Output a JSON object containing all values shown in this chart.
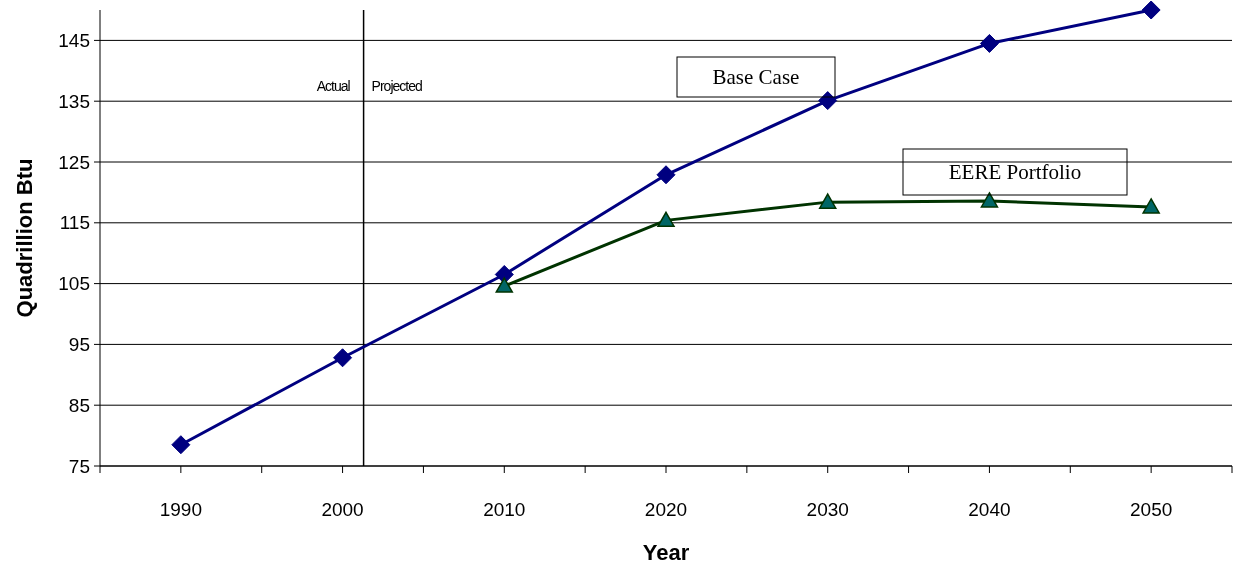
{
  "chart_data": {
    "type": "line",
    "xlabel": "Year",
    "ylabel": "Quadrillion Btu",
    "x": [
      1990,
      2000,
      2010,
      2020,
      2030,
      2040,
      2050
    ],
    "series": [
      {
        "name": "Base Case",
        "color": "#000080",
        "marker": "diamond",
        "values": [
          78.5,
          92.8,
          106.5,
          122.9,
          135.1,
          144.5,
          150
        ]
      },
      {
        "name": "EERE Portfolio",
        "color": "#003300",
        "marker": "triangle",
        "x": [
          2010,
          2020,
          2030,
          2040,
          2050
        ],
        "values": [
          104.6,
          115.4,
          118.4,
          118.6,
          117.6
        ]
      }
    ],
    "xlim": [
      1985,
      2055
    ],
    "xticks": [
      {
        "value": 1985,
        "label": null
      },
      {
        "value": 1990,
        "label": "1990"
      },
      {
        "value": 1995,
        "label": null
      },
      {
        "value": 2000,
        "label": "2000"
      },
      {
        "value": 2005,
        "label": null
      },
      {
        "value": 2010,
        "label": "2010"
      },
      {
        "value": 2015,
        "label": null
      },
      {
        "value": 2020,
        "label": "2020"
      },
      {
        "value": 2025,
        "label": null
      },
      {
        "value": 2030,
        "label": "2030"
      },
      {
        "value": 2035,
        "label": null
      },
      {
        "value": 2040,
        "label": "2040"
      },
      {
        "value": 2045,
        "label": null
      },
      {
        "value": 2050,
        "label": "2050"
      },
      {
        "value": 2055,
        "label": null
      }
    ],
    "ylim": [
      75,
      150
    ],
    "yticks": [
      75,
      85,
      95,
      105,
      115,
      125,
      135,
      145
    ],
    "grid": "y",
    "line_style": "solid",
    "ref_lines": [
      {
        "axis": "x",
        "value": 2001.3,
        "color": "#000000"
      }
    ],
    "annotations": [
      "Actual",
      "Projected"
    ]
  }
}
